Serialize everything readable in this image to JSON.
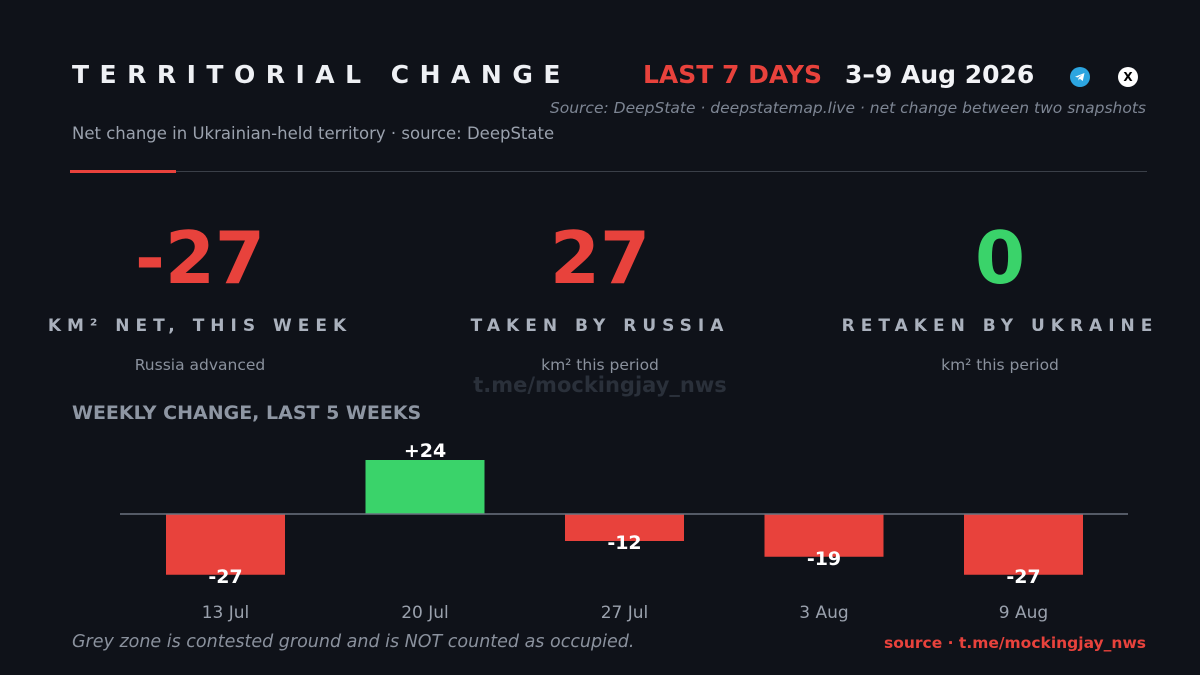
{
  "header": {
    "title": "TERRITORIAL CHANGE",
    "period": "LAST 7 DAYS",
    "date_range": "3–9 Aug 2026",
    "x_icon_glyph": "X",
    "source_line": "Source: DeepState · deepstatemap.live · net change between two snapshots",
    "subtitle": "Net change in Ukrainian-held territory · source: DeepState"
  },
  "icons": [
    "telegram-icon",
    "x-social-icon"
  ],
  "stats": [
    {
      "value": "-27",
      "label": "KM² NET, THIS WEEK",
      "sub": "Russia advanced",
      "color": "#e8423c"
    },
    {
      "value": "27",
      "label": "TAKEN BY RUSSIA",
      "sub": "km² this period",
      "color": "#e8423c"
    },
    {
      "value": "0",
      "label": "RETAKEN BY UKRAINE",
      "sub": "km² this period",
      "color": "#3ad36a"
    }
  ],
  "watermark": "t.me/mockingjay_nws",
  "chart_heading": "WEEKLY CHANGE, LAST 5 WEEKS",
  "colors": {
    "negative": "#e8423c",
    "positive": "#3ad36a",
    "zero_line": "#6b7280",
    "tick": "#9aa1ad"
  },
  "chart_data": {
    "type": "bar",
    "title": "WEEKLY CHANGE, LAST 5 WEEKS",
    "categories": [
      "13 Jul",
      "20 Jul",
      "27 Jul",
      "3 Aug",
      "9 Aug"
    ],
    "values": [
      -27,
      24,
      -12,
      -19,
      -27
    ],
    "value_labels": [
      "-27",
      "+24",
      "-12",
      "-19",
      "-27"
    ],
    "xlabel": "",
    "ylabel": "",
    "grid": false,
    "legend": "none"
  },
  "footer": {
    "note": "Grey zone is contested ground and is NOT counted as occupied.",
    "source": "source · t.me/mockingjay_nws"
  }
}
